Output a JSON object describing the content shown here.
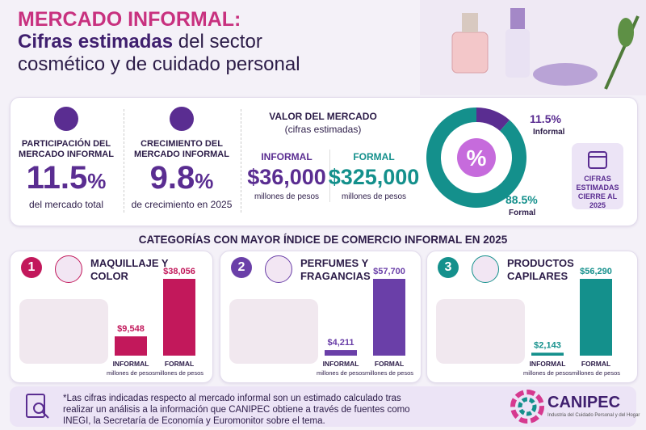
{
  "header": {
    "title_line1": "MERCADO INFORMAL:",
    "title_bold": "Cifras estimadas",
    "title_rest": "del sector cosmético y de cuidado personal"
  },
  "kpis": [
    {
      "label": "PARTICIPACIÓN DEL MERCADO INFORMAL",
      "value": "11.5",
      "unit": "%",
      "caption": "del mercado total"
    },
    {
      "label": "CRECIMIENTO DEL MERCADO INFORMAL",
      "value": "9.8",
      "unit": "%",
      "caption": "de crecimiento en 2025"
    }
  ],
  "market_value": {
    "title": "VALOR DEL MERCADO",
    "subtitle": "(cifras estimadas)",
    "informal": {
      "label": "INFORMAL",
      "value": "$36,000",
      "unit": "millones de pesos"
    },
    "formal": {
      "label": "FORMAL",
      "value": "$325,000",
      "unit": "millones de pesos"
    }
  },
  "badge": "CIFRAS ESTIMADAS CIERRE AL 2025",
  "categories_title": "CATEGORÍAS CON MAYOR ÍNDICE DE COMERCIO INFORMAL EN 2025",
  "footnote": "*Las cifras indicadas respecto al mercado informal son un estimado calculado tras realizar un análisis a la información que CANIPEC obtiene a través de fuentes como INEGI, la Secretaría de Economía y Euromonitor sobre el tema.",
  "logo": {
    "name": "CANIPEC",
    "tagline": "Industria del Cuidado Personal y del Hogar"
  },
  "chart_data": [
    {
      "type": "pie",
      "center_label": "%",
      "categories": [
        "Informal",
        "Formal"
      ],
      "values": [
        11.5,
        88.5
      ],
      "value_labels": [
        "11.5%",
        "88.5%"
      ],
      "colors": [
        "#5a2d91",
        "#14908c"
      ]
    },
    {
      "type": "bar",
      "number": "1",
      "title": "MAQUILLAJE Y COLOR",
      "categories": [
        "INFORMAL",
        "FORMAL"
      ],
      "notes": [
        "millones de pesos",
        "millones de pesos"
      ],
      "values": [
        9548,
        38056
      ],
      "value_labels": [
        "$9,548",
        "$38,056"
      ],
      "color": "#c2185b"
    },
    {
      "type": "bar",
      "number": "2",
      "title": "PERFUMES Y FRAGANCIAS",
      "categories": [
        "INFORMAL",
        "FORMAL"
      ],
      "notes": [
        "millones de pesos",
        "millones de pesos"
      ],
      "values": [
        4211,
        57700
      ],
      "value_labels": [
        "$4,211",
        "$57,700"
      ],
      "color": "#6a3fa8"
    },
    {
      "type": "bar",
      "number": "3",
      "title": "PRODUCTOS CAPILARES",
      "categories": [
        "INFORMAL",
        "FORMAL"
      ],
      "notes": [
        "millones de pesos",
        "millones de pesos"
      ],
      "values": [
        2143,
        56290
      ],
      "value_labels": [
        "$2,143",
        "$56,290"
      ],
      "color": "#14908c"
    }
  ]
}
